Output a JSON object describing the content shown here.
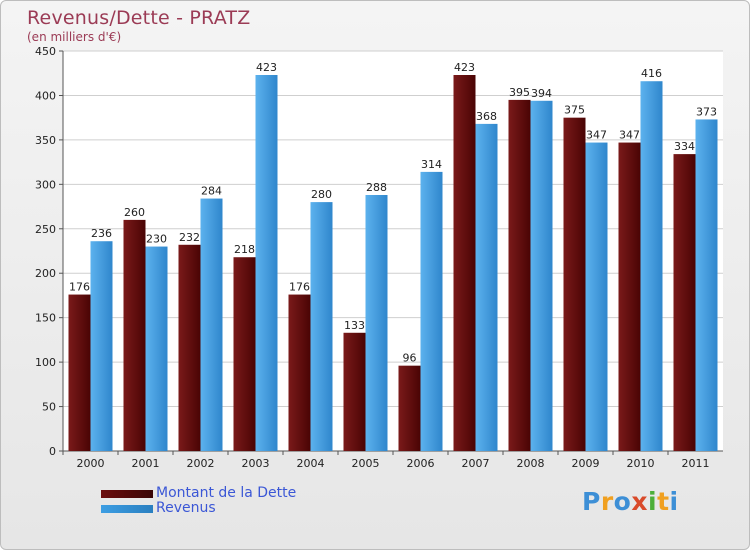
{
  "header": {
    "title": "Revenus/Dette - PRATZ",
    "subtitle": "(en milliers d'€)"
  },
  "colors": {
    "debt": "#6b0c0c",
    "revenue": "#3d9ee3",
    "grid": "#cfcfcf",
    "axis_text": "#222222",
    "title": "#9b3b55",
    "legend_text": "#3b57d6"
  },
  "chart_data": {
    "type": "bar",
    "title": "Revenus/Dette - PRATZ",
    "subtitle": "(en milliers d'€)",
    "categories": [
      "2000",
      "2001",
      "2002",
      "2003",
      "2004",
      "2005",
      "2006",
      "2007",
      "2008",
      "2009",
      "2010",
      "2011"
    ],
    "series": [
      {
        "name": "Montant de la Dette",
        "color": "#6b0c0c",
        "values": [
          176,
          260,
          232,
          218,
          176,
          133,
          96,
          423,
          395,
          375,
          347,
          334
        ]
      },
      {
        "name": "Revenus",
        "color": "#3d9ee3",
        "values": [
          236,
          230,
          284,
          423,
          280,
          288,
          314,
          368,
          394,
          347,
          416,
          373
        ]
      }
    ],
    "ylim": [
      0,
      450
    ],
    "yticks": [
      0,
      50,
      100,
      150,
      200,
      250,
      300,
      350,
      400,
      450
    ],
    "grid": true,
    "legend_position": "bottom-left",
    "data_labels": true
  },
  "legend": {
    "items": [
      {
        "label": "Montant de la Dette",
        "color": "#6b0c0c"
      },
      {
        "label": "Revenus",
        "color": "#3d9ee3"
      }
    ]
  },
  "logo": {
    "letters": [
      "P",
      "r",
      "o",
      "x",
      "i",
      "t",
      "i"
    ],
    "colors": [
      "#3d8fd6",
      "#f0a020",
      "#3d8fd6",
      "#d94a2a",
      "#4caf3a",
      "#f0a020",
      "#3d8fd6"
    ]
  }
}
